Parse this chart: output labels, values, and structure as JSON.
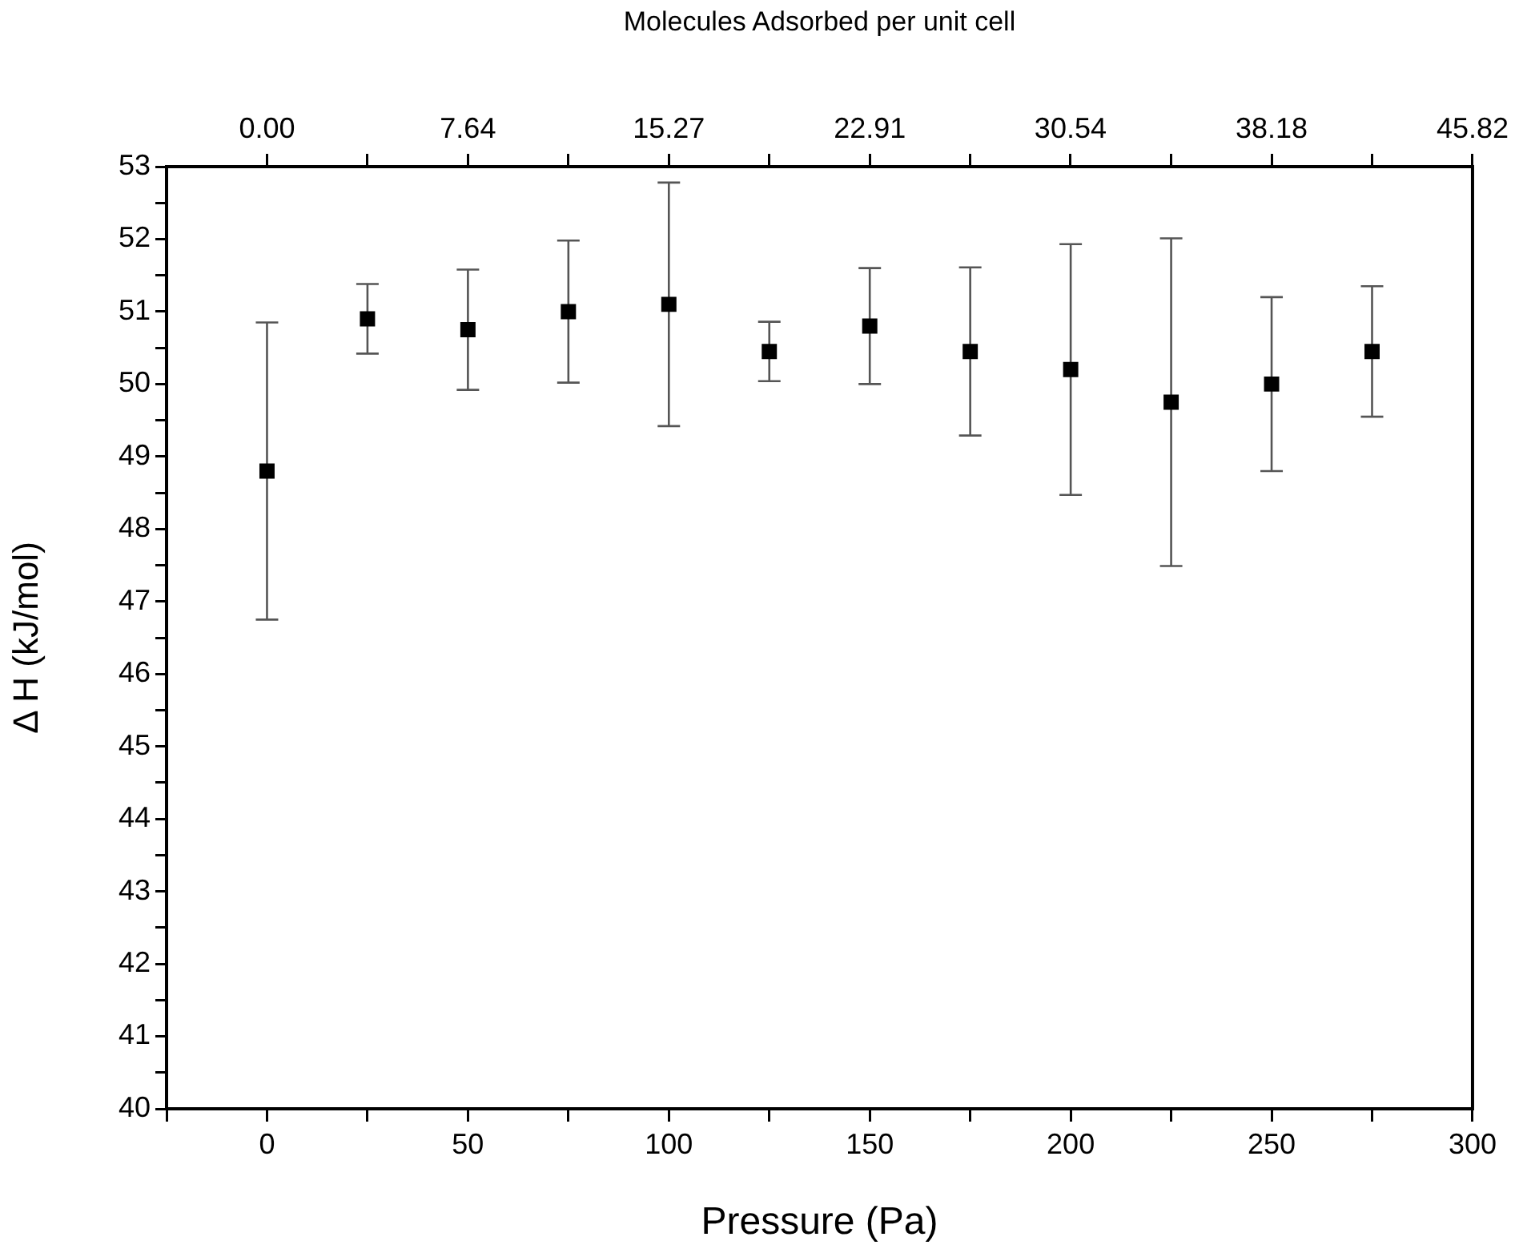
{
  "chart_data": {
    "type": "scatter",
    "xlabel": "Pressure (Pa)",
    "ylabel": "Δ H (kJ/mol)",
    "x2label": "Molecules Adsorbed per unit cell",
    "x": [
      0,
      25,
      50,
      75,
      100,
      125,
      150,
      175,
      200,
      225,
      250,
      275
    ],
    "series": [
      {
        "color": "#000000",
        "values": [
          48.8,
          50.9,
          50.75,
          51.0,
          51.1,
          50.45,
          50.8,
          50.45,
          50.2,
          49.75,
          50.0,
          50.45
        ],
        "errors": [
          2.05,
          0.48,
          0.83,
          0.98,
          1.68,
          0.41,
          0.8,
          1.16,
          1.73,
          2.26,
          1.2,
          0.9
        ]
      }
    ],
    "marker": "square",
    "grid": false,
    "legend": false,
    "xlim": [
      -25,
      300
    ],
    "xticks": [
      {
        "value": -25,
        "label": null
      },
      0,
      {
        "value": 25,
        "label": null
      },
      50,
      {
        "value": 75,
        "label": null
      },
      100,
      {
        "value": 125,
        "label": null
      },
      150,
      {
        "value": 175,
        "label": null
      },
      200,
      {
        "value": 225,
        "label": null
      },
      250,
      {
        "value": 275,
        "label": null
      },
      300
    ],
    "x2lim": [
      -3.818,
      45.82
    ],
    "x2ticks": [
      {
        "value": 0,
        "label": "0.00"
      },
      {
        "value": 3.818,
        "label": null
      },
      {
        "value": 7.637,
        "label": "7.64"
      },
      {
        "value": 11.455,
        "label": null
      },
      {
        "value": 15.273,
        "label": "15.27"
      },
      {
        "value": 19.092,
        "label": null
      },
      {
        "value": 22.91,
        "label": "22.91"
      },
      {
        "value": 26.728,
        "label": null
      },
      {
        "value": 30.54,
        "label": "30.54"
      },
      {
        "value": 34.365,
        "label": null
      },
      {
        "value": 38.183,
        "label": "38.18"
      },
      {
        "value": 42.002,
        "label": null
      },
      {
        "value": 45.82,
        "label": "45.82"
      }
    ],
    "ylim": [
      40,
      53
    ],
    "yticks": [
      40,
      {
        "value": 40.5,
        "label": null
      },
      41,
      {
        "value": 41.5,
        "label": null
      },
      42,
      {
        "value": 42.5,
        "label": null
      },
      43,
      {
        "value": 43.5,
        "label": null
      },
      44,
      {
        "value": 44.5,
        "label": null
      },
      45,
      {
        "value": 45.5,
        "label": null
      },
      46,
      {
        "value": 46.5,
        "label": null
      },
      47,
      {
        "value": 47.5,
        "label": null
      },
      48,
      {
        "value": 48.5,
        "label": null
      },
      49,
      {
        "value": 49.5,
        "label": null
      },
      50,
      {
        "value": 50.5,
        "label": null
      },
      51,
      {
        "value": 51.5,
        "label": null
      },
      52,
      {
        "value": 52.5,
        "label": null
      },
      53
    ]
  }
}
